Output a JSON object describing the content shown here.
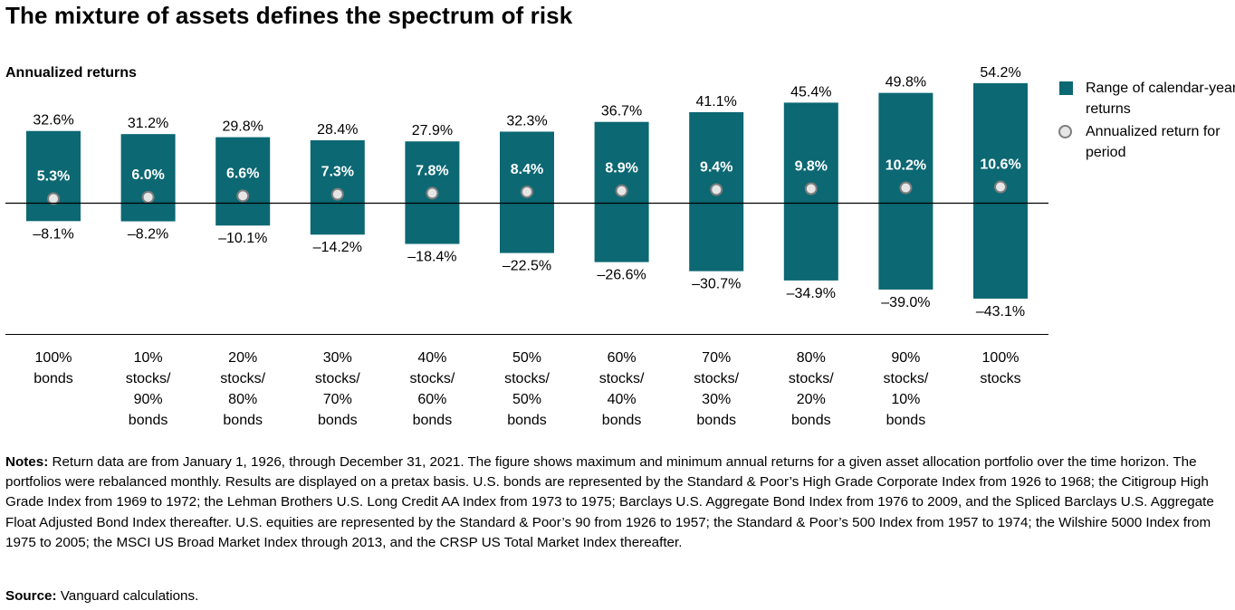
{
  "chart_data": {
    "type": "bar",
    "title": "The mixture of assets defines the spectrum of risk",
    "ylabel": "Annualized returns",
    "categories": [
      [
        "100%",
        "bonds"
      ],
      [
        "10%",
        "stocks/",
        "90%",
        "bonds"
      ],
      [
        "20%",
        "stocks/",
        "80%",
        "bonds"
      ],
      [
        "30%",
        "stocks/",
        "70%",
        "bonds"
      ],
      [
        "40%",
        "stocks/",
        "60%",
        "bonds"
      ],
      [
        "50%",
        "stocks/",
        "50%",
        "bonds"
      ],
      [
        "60%",
        "stocks/",
        "40%",
        "bonds"
      ],
      [
        "70%",
        "stocks/",
        "30%",
        "bonds"
      ],
      [
        "80%",
        "stocks/",
        "20%",
        "bonds"
      ],
      [
        "90%",
        "stocks/",
        "10%",
        "bonds"
      ],
      [
        "100%",
        "stocks"
      ]
    ],
    "series": [
      {
        "name": "Range of calendar-year returns",
        "max": [
          32.6,
          31.2,
          29.8,
          28.4,
          27.9,
          32.3,
          36.7,
          41.1,
          45.4,
          49.8,
          54.2
        ],
        "min": [
          -8.1,
          -8.2,
          -10.1,
          -14.2,
          -18.4,
          -22.5,
          -26.6,
          -30.7,
          -34.9,
          -39.0,
          -43.1
        ],
        "max_labels": [
          "32.6%",
          "31.2%",
          "29.8%",
          "28.4%",
          "27.9%",
          "32.3%",
          "36.7%",
          "41.1%",
          "45.4%",
          "49.8%",
          "54.2%"
        ],
        "min_labels": [
          "–8.1%",
          "–8.2%",
          "–10.1%",
          "–14.2%",
          "–18.4%",
          "–22.5%",
          "–26.6%",
          "–30.7%",
          "–34.9%",
          "–39.0%",
          "–43.1%"
        ],
        "color": "#0c6873"
      },
      {
        "name": "Annualized return for period",
        "values": [
          5.3,
          6.0,
          6.6,
          7.3,
          7.8,
          8.4,
          8.9,
          9.4,
          9.8,
          10.2,
          10.6
        ],
        "labels": [
          "5.3%",
          "6.0%",
          "6.6%",
          "7.3%",
          "7.8%",
          "8.4%",
          "8.9%",
          "9.4%",
          "9.8%",
          "10.2%",
          "10.6%"
        ],
        "marker_fill": "#e6e6e6",
        "marker_stroke": "#7d7d7d"
      }
    ],
    "ylim": [
      -43.1,
      54.2
    ],
    "zero_line": true,
    "grid": false,
    "legend_position": "right"
  },
  "legend": {
    "range_label": "Range of calendar-year returns",
    "annualized_label": "Annualized return for period"
  },
  "notes": {
    "prefix": "Notes:",
    "text": "Return data are from January 1, 1926, through December 31, 2021. The figure shows maximum and minimum annual returns for a given asset allocation portfolio over the time horizon. The portfolios were rebalanced monthly. Results are displayed on a pretax basis. U.S. bonds are represented by the Standard & Poor’s High Grade Corporate Index from 1926 to 1968; the Citigroup High Grade Index from 1969 to 1972; the Lehman Brothers U.S. Long Credit AA Index from 1973 to 1975; Barclays U.S. Aggregate Bond Index from 1976 to 2009, and the Spliced Barclays U.S. Aggregate Float Adjusted Bond Index thereafter. U.S. equities are represented by the Standard & Poor’s 90 from 1926 to 1957; the Standard & Poor’s 500 Index from 1957 to 1974; the Wilshire 5000 Index from 1975 to 2005; the MSCI US Broad Market Index through 2013, and the CRSP US Total Market Index thereafter."
  },
  "source": {
    "prefix": "Source:",
    "text": "Vanguard calculations."
  }
}
